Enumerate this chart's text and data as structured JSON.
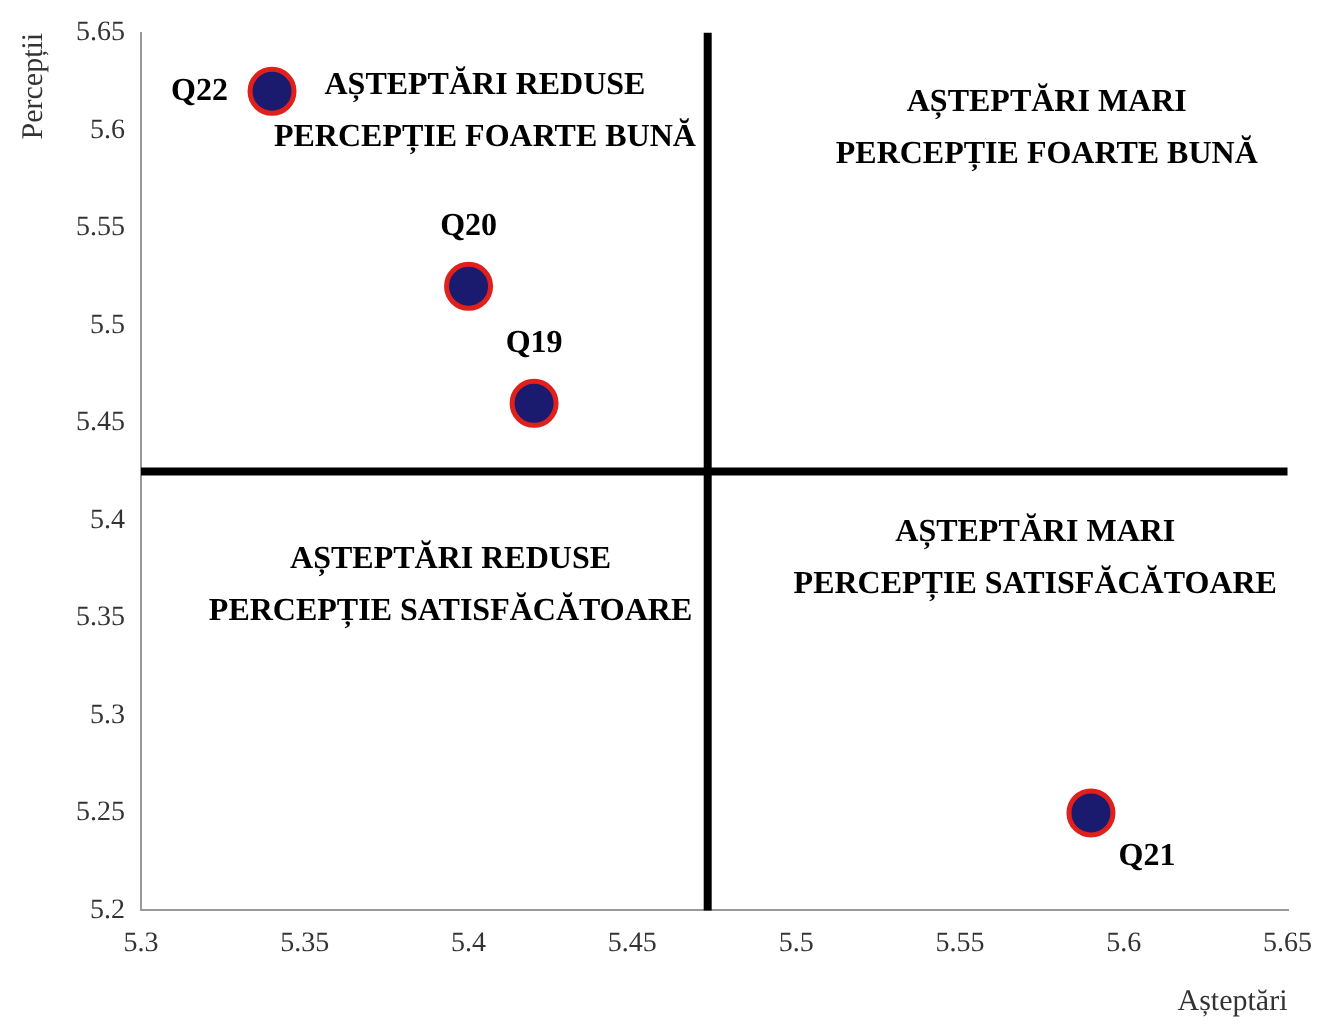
{
  "chart_data": {
    "type": "scatter",
    "xlabel": "Așteptări",
    "ylabel": "Percepții",
    "x": [
      5.34,
      5.4,
      5.42,
      5.59
    ],
    "values": [
      5.62,
      5.52,
      5.46,
      5.25
    ],
    "value_labels": [
      "Q22",
      "Q20",
      "Q19",
      "Q21"
    ],
    "color": "#1a1a6e",
    "marker": "circle",
    "xlim": [
      5.3,
      5.65
    ],
    "xticks": [
      5.3,
      5.35,
      5.4,
      5.45,
      5.5,
      5.55,
      5.6,
      5.65
    ],
    "ylim": [
      5.2,
      5.65
    ],
    "yticks": [
      5.2,
      5.25,
      5.3,
      5.35,
      5.4,
      5.45,
      5.5,
      5.55,
      5.6,
      5.65
    ],
    "grid": false,
    "legend": false,
    "ref_lines": [
      {
        "axis": "x",
        "value": 5.473,
        "color": "#000000"
      },
      {
        "axis": "y",
        "value": 5.425,
        "color": "#000000"
      }
    ],
    "annotations": [
      "AȘTEPTĂRI REDUSE\nPERCEPȚIE FOARTE BUNĂ",
      "AȘTEPTĂRI MARI\nPERCEPȚIE FOARTE BUNĂ",
      "AȘTEPTĂRI REDUSE\nPERCEPȚIE SATISFĂCĂTOARE",
      "AȘTEPTĂRI MARI\nPERCEPȚIE SATISFĂCĂTOARE"
    ]
  }
}
